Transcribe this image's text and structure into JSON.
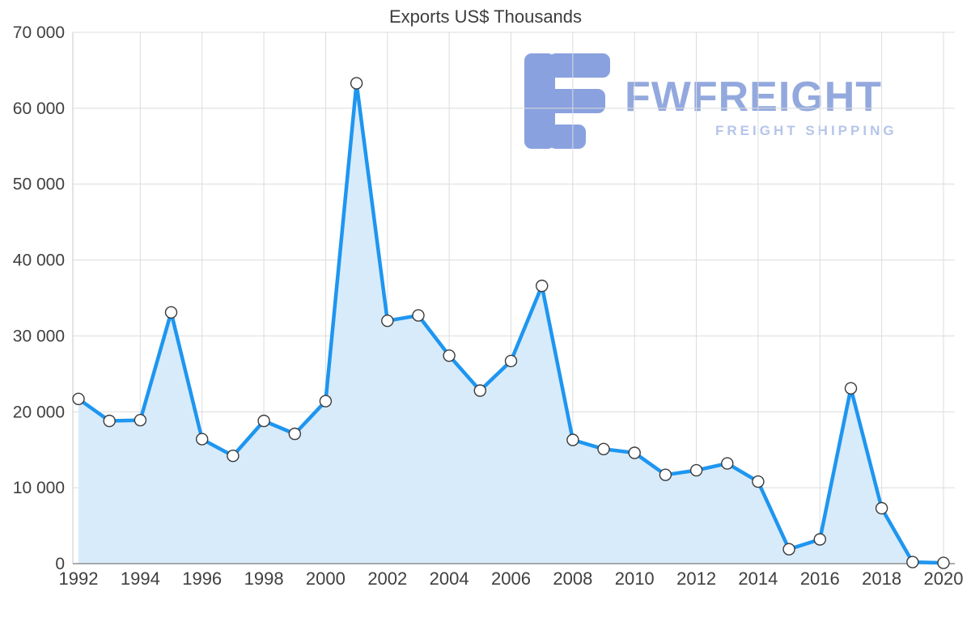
{
  "title": "Exports US$ Thousands",
  "logo": {
    "name": "FWFREIGHT",
    "subtitle": "FREIGHT SHIPPING",
    "icon": "fwfreight-f-bars-logo-icon",
    "color_icon": "#8aa1df",
    "color_name": "#93a9de",
    "color_subtitle": "#b5c5ea"
  },
  "chart_data": {
    "type": "area",
    "title": "Exports US$ Thousands",
    "series_name": "Exports US$ Thousands",
    "x": [
      1992,
      1993,
      1994,
      1995,
      1996,
      1997,
      1998,
      1999,
      2000,
      2001,
      2002,
      2003,
      2004,
      2005,
      2006,
      2007,
      2008,
      2009,
      2010,
      2011,
      2012,
      2013,
      2014,
      2015,
      2016,
      2017,
      2018,
      2019,
      2020
    ],
    "values": [
      21700,
      18800,
      18900,
      33100,
      16400,
      14200,
      18800,
      17100,
      21400,
      63300,
      32000,
      32700,
      27400,
      22800,
      26700,
      36600,
      16300,
      15100,
      14600,
      11700,
      12300,
      13200,
      10800,
      1900,
      3200,
      23100,
      7300,
      200,
      100
    ],
    "xlabel": "",
    "ylabel": "",
    "ylim": [
      0,
      70000
    ],
    "y_tick_step": 10000,
    "y_tick_labels": [
      "0",
      "10 000",
      "20 000",
      "30 000",
      "40 000",
      "50 000",
      "60 000",
      "70 000"
    ],
    "x_tick_labels": [
      "1992",
      "1994",
      "1996",
      "1998",
      "2000",
      "2002",
      "2004",
      "2006",
      "2008",
      "2010",
      "2012",
      "2014",
      "2016",
      "2018",
      "2020"
    ],
    "grid": true,
    "legend": "none",
    "colors": {
      "line": "#1e96f0",
      "fill": "#d8ebfa",
      "marker_fill": "#ffffff",
      "marker_stroke": "#3a3a3a",
      "grid": "#dcdcdc",
      "axis_left": "#c8c8c8",
      "axis_bottom": "#8f8f8f",
      "tick_text": "#404040"
    }
  }
}
